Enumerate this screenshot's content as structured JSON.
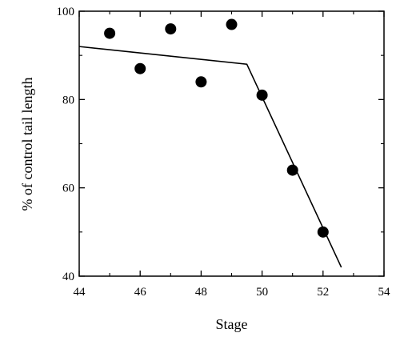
{
  "chart_data": {
    "type": "scatter",
    "title": "",
    "xlabel": "Stage",
    "ylabel": "% of control tail length",
    "xlim": [
      44,
      54
    ],
    "ylim": [
      40,
      100
    ],
    "xticks": [
      44,
      46,
      48,
      50,
      52,
      54
    ],
    "yticks": [
      40,
      60,
      80,
      100
    ],
    "grid": false,
    "legend": "none",
    "points": {
      "x": [
        45,
        46,
        47,
        48,
        49,
        50,
        51,
        52
      ],
      "y": [
        95,
        87,
        96,
        84,
        97,
        81,
        64,
        50
      ]
    },
    "fit_line": {
      "x": [
        44,
        49.5,
        52.6
      ],
      "y": [
        92,
        88,
        42
      ]
    }
  }
}
